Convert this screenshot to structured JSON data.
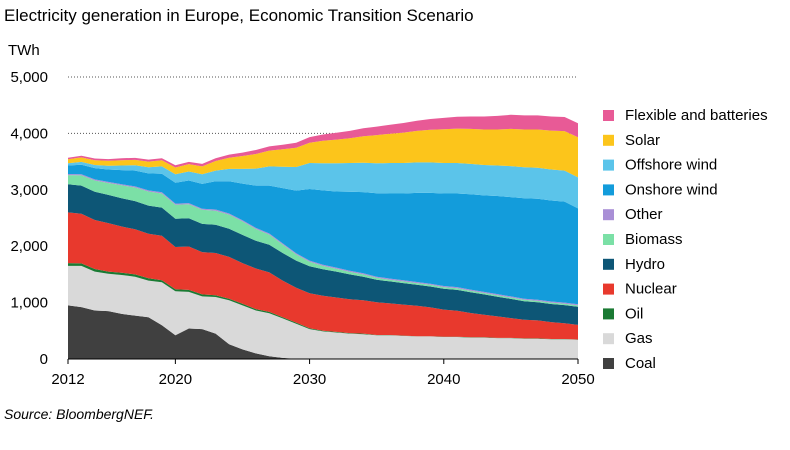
{
  "chart_data": {
    "type": "area",
    "title": "Electricity generation in Europe, Economic Transition Scenario",
    "ylabel": "TWh",
    "xlabel": "",
    "ylim": [
      0,
      5000
    ],
    "yticks": [
      "0",
      "1,000",
      "2,000",
      "3,000",
      "4,000",
      "5,000"
    ],
    "xticks": [
      "2012",
      "2020",
      "2030",
      "2040",
      "2050"
    ],
    "xlim": [
      2012,
      2050
    ],
    "grid": "dotted horizontal gridlines at 4,000 and 5,000",
    "legend_position": "right",
    "x": [
      2012,
      2013,
      2014,
      2015,
      2016,
      2017,
      2018,
      2019,
      2020,
      2021,
      2022,
      2023,
      2024,
      2025,
      2026,
      2027,
      2028,
      2029,
      2030,
      2031,
      2032,
      2033,
      2034,
      2035,
      2036,
      2037,
      2038,
      2039,
      2040,
      2041,
      2042,
      2043,
      2044,
      2045,
      2046,
      2047,
      2048,
      2049,
      2050
    ],
    "series": [
      {
        "name": "Coal",
        "color": "#404040",
        "values": [
          950,
          920,
          860,
          850,
          800,
          770,
          740,
          600,
          420,
          540,
          530,
          450,
          260,
          170,
          100,
          50,
          20,
          5,
          0,
          0,
          0,
          0,
          0,
          0,
          0,
          0,
          0,
          0,
          0,
          0,
          0,
          0,
          0,
          0,
          0,
          0,
          0,
          0,
          0
        ]
      },
      {
        "name": "Gas",
        "color": "#d9d9d9",
        "values": [
          700,
          730,
          690,
          660,
          690,
          690,
          650,
          760,
          780,
          650,
          580,
          650,
          780,
          780,
          760,
          760,
          700,
          620,
          530,
          490,
          470,
          450,
          440,
          420,
          420,
          410,
          400,
          400,
          390,
          390,
          380,
          380,
          370,
          370,
          360,
          360,
          350,
          350,
          340
        ]
      },
      {
        "name": "Oil",
        "color": "#1a7a33",
        "values": [
          50,
          45,
          45,
          40,
          40,
          40,
          40,
          35,
          35,
          35,
          35,
          30,
          30,
          30,
          25,
          25,
          20,
          20,
          15,
          10,
          10,
          10,
          10,
          5,
          5,
          5,
          5,
          5,
          5,
          5,
          5,
          5,
          5,
          5,
          5,
          5,
          5,
          5,
          5
        ]
      },
      {
        "name": "Nuclear",
        "color": "#e8392d",
        "values": [
          900,
          880,
          870,
          860,
          820,
          800,
          790,
          790,
          750,
          770,
          750,
          750,
          740,
          720,
          720,
          700,
          650,
          620,
          620,
          620,
          610,
          600,
          590,
          580,
          560,
          550,
          540,
          510,
          480,
          460,
          430,
          400,
          380,
          350,
          330,
          320,
          300,
          280,
          260
        ]
      },
      {
        "name": "Hydro",
        "color": "#0d5676",
        "values": [
          500,
          500,
          500,
          500,
          500,
          500,
          500,
          500,
          500,
          500,
          500,
          500,
          500,
          500,
          490,
          490,
          490,
          480,
          480,
          470,
          460,
          440,
          420,
          400,
          390,
          380,
          370,
          370,
          370,
          370,
          370,
          360,
          350,
          340,
          330,
          320,
          320,
          320,
          320
        ]
      },
      {
        "name": "Biomass",
        "color": "#7be0a6",
        "values": [
          160,
          180,
          200,
          210,
          230,
          240,
          250,
          250,
          250,
          250,
          250,
          250,
          250,
          240,
          210,
          180,
          150,
          110,
          80,
          60,
          50,
          45,
          40,
          35,
          30,
          30,
          30,
          30,
          30,
          30,
          25,
          25,
          25,
          25,
          25,
          25,
          25,
          25,
          25
        ]
      },
      {
        "name": "Other",
        "color": "#a98fd6",
        "values": [
          20,
          20,
          20,
          20,
          20,
          20,
          20,
          20,
          20,
          20,
          20,
          20,
          20,
          20,
          20,
          20,
          20,
          20,
          20,
          20,
          20,
          20,
          20,
          20,
          20,
          20,
          20,
          20,
          20,
          20,
          20,
          20,
          20,
          20,
          20,
          20,
          20,
          20,
          20
        ]
      },
      {
        "name": "Onshore wind",
        "color": "#139cdb",
        "values": [
          150,
          170,
          200,
          220,
          250,
          280,
          300,
          330,
          370,
          400,
          440,
          500,
          570,
          650,
          750,
          850,
          980,
          1110,
          1270,
          1320,
          1350,
          1400,
          1440,
          1480,
          1510,
          1540,
          1580,
          1610,
          1640,
          1660,
          1690,
          1710,
          1740,
          1760,
          1780,
          1790,
          1790,
          1790,
          1700
        ]
      },
      {
        "name": "Offshore wind",
        "color": "#5bc4ea",
        "values": [
          40,
          50,
          55,
          65,
          80,
          95,
          110,
          130,
          150,
          160,
          170,
          190,
          220,
          260,
          300,
          340,
          380,
          420,
          460,
          480,
          500,
          510,
          520,
          530,
          540,
          540,
          540,
          540,
          540,
          540,
          540,
          540,
          540,
          550,
          550,
          550,
          550,
          550,
          550
        ]
      },
      {
        "name": "Solar",
        "color": "#fcc51b",
        "values": [
          70,
          80,
          85,
          90,
          95,
          95,
          100,
          110,
          120,
          130,
          140,
          170,
          200,
          230,
          260,
          280,
          310,
          340,
          360,
          400,
          420,
          440,
          470,
          500,
          520,
          540,
          560,
          580,
          600,
          610,
          620,
          630,
          640,
          660,
          670,
          680,
          690,
          700,
          710
        ]
      },
      {
        "name": "Flexible and batteries",
        "color": "#e85a96",
        "values": [
          30,
          30,
          30,
          30,
          35,
          35,
          35,
          35,
          40,
          40,
          45,
          50,
          55,
          60,
          70,
          75,
          80,
          90,
          100,
          110,
          120,
          130,
          140,
          150,
          160,
          170,
          180,
          190,
          200,
          210,
          220,
          230,
          240,
          250,
          250,
          250,
          250,
          250,
          250
        ]
      }
    ]
  },
  "source": "Source: BloombergNEF."
}
